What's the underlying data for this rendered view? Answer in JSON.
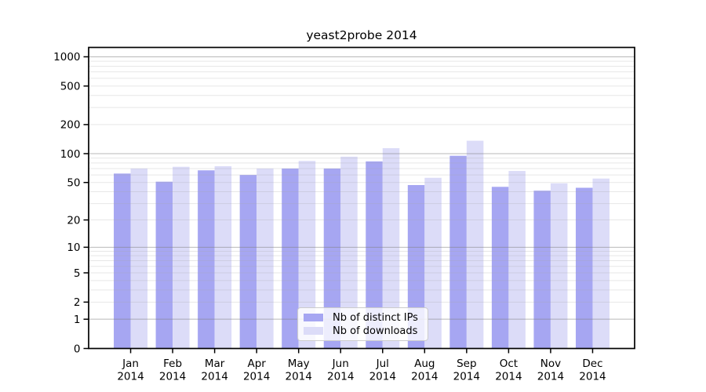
{
  "title": "yeast2probe 2014",
  "chart_data": {
    "type": "bar",
    "title": "yeast2probe 2014",
    "categories": [
      "Jan",
      "Feb",
      "Mar",
      "Apr",
      "May",
      "Jun",
      "Jul",
      "Aug",
      "Sep",
      "Oct",
      "Nov",
      "Dec"
    ],
    "category_year": "2014",
    "series": [
      {
        "name": "Nb of distinct IPs",
        "color": "#a6a6f2",
        "values": [
          62,
          51,
          67,
          60,
          70,
          70,
          83,
          47,
          95,
          45,
          41,
          44
        ]
      },
      {
        "name": "Nb of downloads",
        "color": "#dcdcf8",
        "values": [
          70,
          73,
          74,
          70,
          84,
          93,
          114,
          56,
          136,
          66,
          49,
          55
        ]
      }
    ],
    "yscale": "log1p",
    "yticks": [
      0,
      1,
      2,
      5,
      10,
      20,
      50,
      100,
      200,
      500,
      1000
    ],
    "ylim": [
      0,
      1260
    ],
    "xlabel": "",
    "ylabel": "",
    "grid": true,
    "legend_position": "lower-center"
  },
  "colors": {
    "background": "#ffffff",
    "axis": "#000000",
    "text": "#000000",
    "grid_major": "#808080",
    "grid_minor": "#aaaaaa",
    "distinct_ips": "#a6a6f2",
    "downloads": "#dcdcf8"
  }
}
